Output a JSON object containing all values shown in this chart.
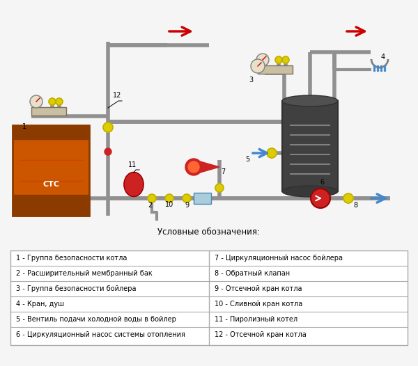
{
  "title": "",
  "background_color": "#f5f5f5",
  "legend_title": "Условные обозначения:",
  "legend_items_left": [
    "1 - Группа безопасности котла",
    "2 - Расширительный мембранный бак",
    "3 - Группа безопасности бойлера",
    "4 - Кран, душ",
    "5 - Вентиль подачи холодной воды в бойлер",
    "6 - Циркуляционный насос системы отопления"
  ],
  "legend_items_right": [
    "7 - Циркуляционный насос бойлера",
    "8 - Обратный клапан",
    "9 - Отсечной кран котла",
    "10 - Сливной кран котла",
    "11 - Пиролизный котел",
    "12 - Отсечной кран котла"
  ],
  "pipe_color": "#a0a0a0",
  "pipe_color_dark": "#707070",
  "red_arrow_color": "#cc0000",
  "blue_arrow_color": "#4488cc",
  "boiler_color_main": "#cc5500",
  "boiler_color_dark": "#8b3a00",
  "tank_color": "#404040",
  "expansion_color": "#cc2222",
  "safety_group_color": "#c8c0a0",
  "valve_color": "#ddcc00",
  "pump_color": "#cc2222"
}
